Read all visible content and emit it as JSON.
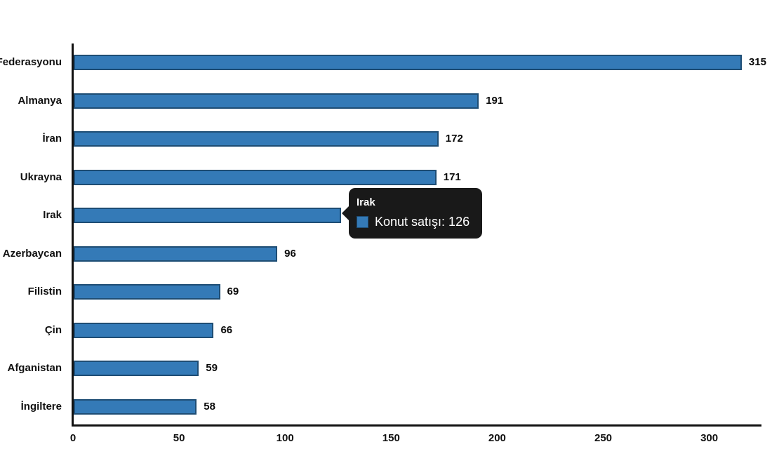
{
  "chart_data": {
    "type": "bar",
    "orientation": "horizontal",
    "title": "",
    "xlabel": "",
    "ylabel": "",
    "categories": [
      "Rusya Federasyonu",
      "Almanya",
      "İran",
      "Ukrayna",
      "Irak",
      "Azerbaycan",
      "Filistin",
      "Çin",
      "Afganistan",
      "İngiltere"
    ],
    "series": [
      {
        "name": "Konut satışı",
        "values": [
          315,
          191,
          172,
          171,
          126,
          96,
          69,
          66,
          59,
          58
        ]
      }
    ],
    "value_labels": [
      "315",
      "191",
      "172",
      "171",
      "",
      "96",
      "69",
      "66",
      "59",
      "58"
    ],
    "x_ticks": [
      0,
      50,
      100,
      150,
      200,
      250,
      300
    ],
    "xlim": [
      0,
      324
    ],
    "grid": false,
    "legend": false,
    "colors": {
      "bar_fill": "#347ab7",
      "bar_border": "#1e4d74",
      "text": "#111111",
      "axis": "#111111",
      "tooltip_background": "rgba(0,0,0,0.9)"
    },
    "tooltip": {
      "title": "Irak",
      "text": "Konut satışı: 126",
      "series_name": "Konut satışı",
      "value": 126,
      "marker_color": "#347ab7"
    }
  }
}
